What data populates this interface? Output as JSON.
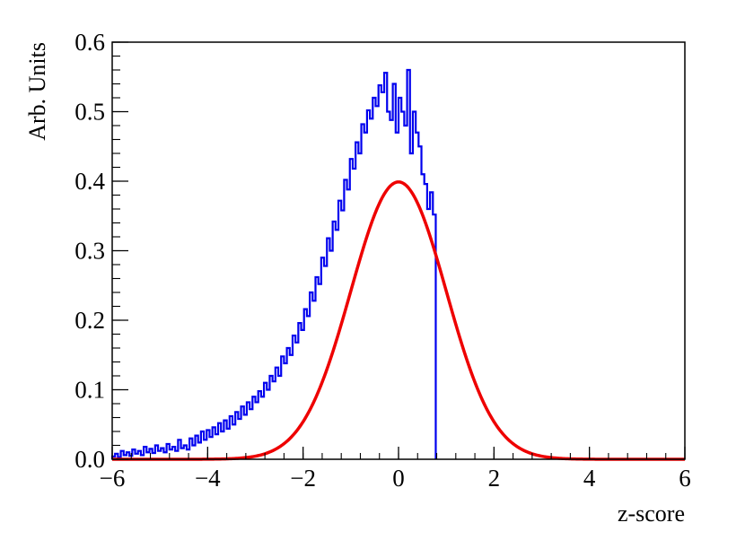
{
  "chart_data": {
    "type": "line",
    "title": "",
    "xlabel": "z-score",
    "ylabel": "Arb. Units",
    "xlim": [
      -6,
      6
    ],
    "ylim": [
      0,
      0.6
    ],
    "x_ticks": [
      -6,
      -4,
      -2,
      0,
      2,
      4,
      6
    ],
    "x_tick_labels": [
      "−6",
      "−4",
      "−2",
      "0",
      "2",
      "4",
      "6"
    ],
    "y_ticks": [
      0,
      0.1,
      0.2,
      0.3,
      0.4,
      0.5,
      0.6
    ],
    "y_tick_labels": [
      "0.0",
      "0.1",
      "0.2",
      "0.3",
      "0.4",
      "0.5",
      "0.6"
    ],
    "grid": false,
    "series": [
      {
        "style": "step-histogram",
        "color": "#0000ee",
        "bin_width": 0.06,
        "x": [
          -6.0,
          -5.94,
          -5.88,
          -5.82,
          -5.76,
          -5.7,
          -5.64,
          -5.58,
          -5.52,
          -5.46,
          -5.4,
          -5.34,
          -5.28,
          -5.22,
          -5.16,
          -5.1,
          -5.04,
          -4.98,
          -4.92,
          -4.86,
          -4.8,
          -4.74,
          -4.68,
          -4.62,
          -4.56,
          -4.5,
          -4.44,
          -4.38,
          -4.32,
          -4.26,
          -4.2,
          -4.14,
          -4.08,
          -4.02,
          -3.96,
          -3.9,
          -3.84,
          -3.78,
          -3.72,
          -3.66,
          -3.6,
          -3.54,
          -3.48,
          -3.42,
          -3.36,
          -3.3,
          -3.24,
          -3.18,
          -3.12,
          -3.06,
          -3.0,
          -2.94,
          -2.88,
          -2.82,
          -2.76,
          -2.7,
          -2.64,
          -2.58,
          -2.52,
          -2.46,
          -2.4,
          -2.34,
          -2.28,
          -2.22,
          -2.16,
          -2.1,
          -2.04,
          -1.98,
          -1.92,
          -1.86,
          -1.8,
          -1.74,
          -1.68,
          -1.62,
          -1.56,
          -1.5,
          -1.44,
          -1.38,
          -1.32,
          -1.26,
          -1.2,
          -1.14,
          -1.08,
          -1.02,
          -0.96,
          -0.9,
          -0.84,
          -0.78,
          -0.72,
          -0.66,
          -0.6,
          -0.54,
          -0.48,
          -0.42,
          -0.36,
          -0.3,
          -0.24,
          -0.18,
          -0.12,
          -0.06,
          0.0,
          0.06,
          0.12,
          0.18,
          0.24,
          0.3,
          0.36,
          0.42,
          0.48,
          0.54,
          0.6,
          0.66,
          0.72
        ],
        "values": [
          0.004,
          0.008,
          0.003,
          0.012,
          0.006,
          0.01,
          0.005,
          0.014,
          0.008,
          0.012,
          0.006,
          0.018,
          0.01,
          0.015,
          0.009,
          0.02,
          0.012,
          0.016,
          0.01,
          0.022,
          0.014,
          0.018,
          0.012,
          0.028,
          0.016,
          0.02,
          0.014,
          0.03,
          0.02,
          0.034,
          0.024,
          0.04,
          0.028,
          0.042,
          0.032,
          0.046,
          0.036,
          0.052,
          0.04,
          0.056,
          0.044,
          0.062,
          0.05,
          0.068,
          0.058,
          0.076,
          0.064,
          0.082,
          0.072,
          0.09,
          0.082,
          0.098,
          0.09,
          0.11,
          0.1,
          0.12,
          0.112,
          0.132,
          0.12,
          0.148,
          0.138,
          0.16,
          0.15,
          0.178,
          0.168,
          0.196,
          0.186,
          0.216,
          0.206,
          0.24,
          0.228,
          0.262,
          0.252,
          0.29,
          0.278,
          0.318,
          0.3,
          0.342,
          0.33,
          0.372,
          0.358,
          0.402,
          0.388,
          0.432,
          0.418,
          0.456,
          0.44,
          0.482,
          0.47,
          0.502,
          0.49,
          0.52,
          0.508,
          0.538,
          0.528,
          0.556,
          0.5,
          0.488,
          0.54,
          0.47,
          0.52,
          0.5,
          0.48,
          0.56,
          0.44,
          0.5,
          0.47,
          0.45,
          0.41,
          0.396,
          0.36,
          0.384,
          0.352
        ]
      },
      {
        "style": "curve",
        "name": "",
        "color": "#ee0000",
        "function": "standard normal pdf",
        "peak": [
          0,
          0.399
        ]
      }
    ]
  }
}
